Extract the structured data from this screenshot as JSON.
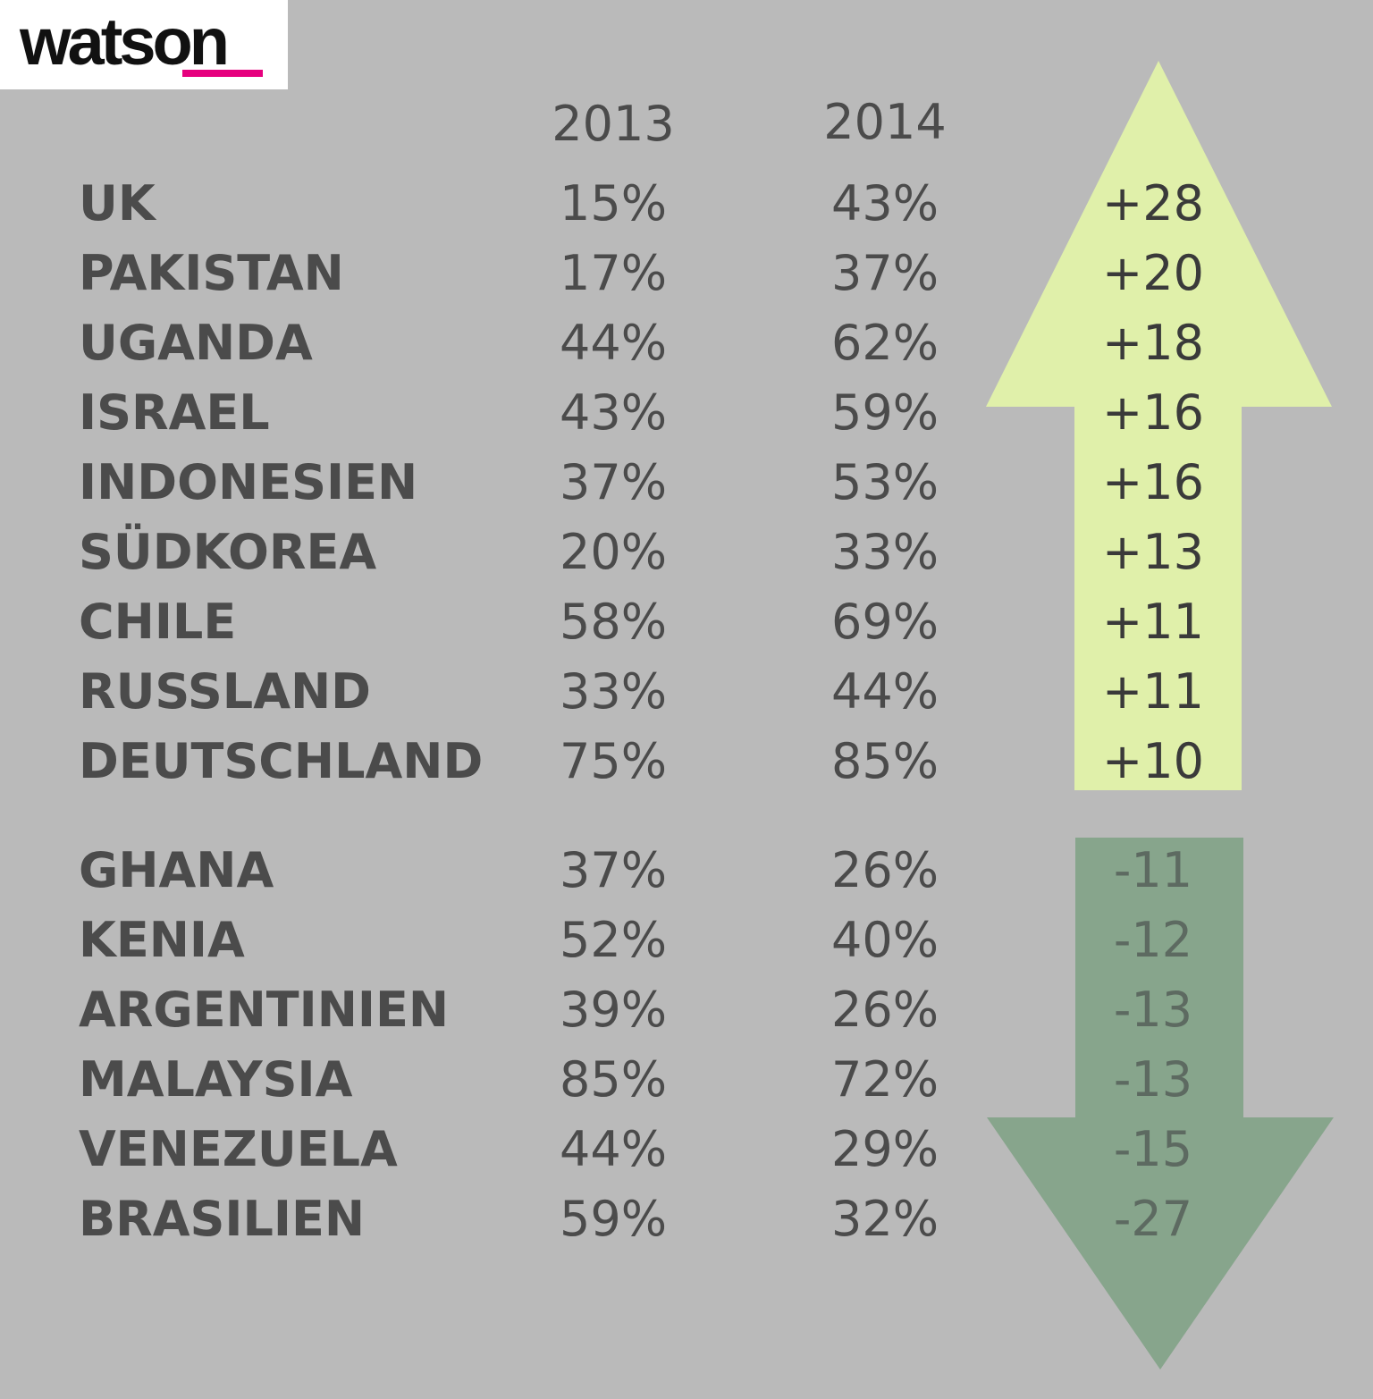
{
  "logo": {
    "text": "watson",
    "accent_color": "#e6007e"
  },
  "colors": {
    "background": "#bababa",
    "text": "#4b4b4b",
    "change_text_up": "#3a3a3a",
    "change_text_down": "#5d6a61",
    "arrow_up": "#e0f0aa",
    "arrow_down": "#87a58c"
  },
  "chart_data": {
    "type": "table",
    "columns": [
      "2013",
      "2014"
    ],
    "increase_group": [
      {
        "country": "UK",
        "v2013": "15%",
        "v2014": "43%",
        "change": "+28"
      },
      {
        "country": "PAKISTAN",
        "v2013": "17%",
        "v2014": "37%",
        "change": "+20"
      },
      {
        "country": "UGANDA",
        "v2013": "44%",
        "v2014": "62%",
        "change": "+18"
      },
      {
        "country": "ISRAEL",
        "v2013": "43%",
        "v2014": "59%",
        "change": "+16"
      },
      {
        "country": "INDONESIEN",
        "v2013": "37%",
        "v2014": "53%",
        "change": "+16"
      },
      {
        "country": "SÜDKOREA",
        "v2013": "20%",
        "v2014": "33%",
        "change": "+13"
      },
      {
        "country": "CHILE",
        "v2013": "58%",
        "v2014": "69%",
        "change": "+11"
      },
      {
        "country": "RUSSLAND",
        "v2013": "33%",
        "v2014": "44%",
        "change": "+11"
      },
      {
        "country": "DEUTSCHLAND",
        "v2013": "75%",
        "v2014": "85%",
        "change": "+10"
      }
    ],
    "decrease_group": [
      {
        "country": "GHANA",
        "v2013": "37%",
        "v2014": "26%",
        "change": "-11"
      },
      {
        "country": "KENIA",
        "v2013": "52%",
        "v2014": "40%",
        "change": "-12"
      },
      {
        "country": "ARGENTINIEN",
        "v2013": "39%",
        "v2014": "26%",
        "change": "-13"
      },
      {
        "country": "MALAYSIA",
        "v2013": "85%",
        "v2014": "72%",
        "change": "-13"
      },
      {
        "country": "VENEZUELA",
        "v2013": "44%",
        "v2014": "29%",
        "change": "-15"
      },
      {
        "country": "BRASILIEN",
        "v2013": "59%",
        "v2014": "32%",
        "change": "-27"
      }
    ]
  }
}
